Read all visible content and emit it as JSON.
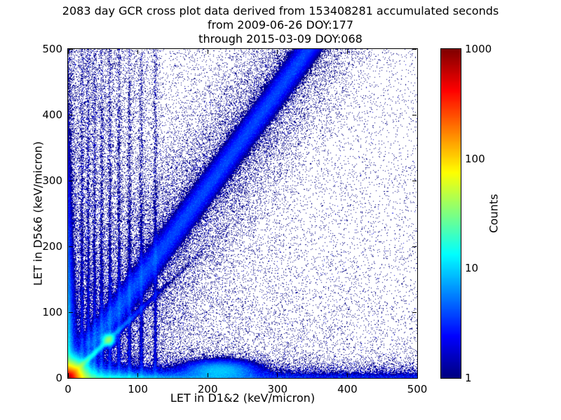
{
  "chart_data": {
    "type": "heatmap",
    "title": "2083 day GCR cross plot data derived from 153408281 accumulated seconds",
    "subtitle_from": "from 2009-06-26 DOY:177",
    "subtitle_through": "through 2015-03-09 DOY:068",
    "days": 2083,
    "accumulated_seconds": 153408281,
    "xlabel": "LET in D1&2 (keV/micron)",
    "ylabel": "LET in D5&6 (keV/micron)",
    "xlim": [
      0,
      500
    ],
    "ylim": [
      0,
      500
    ],
    "xticks": [
      0,
      100,
      200,
      300,
      400,
      500
    ],
    "yticks": [
      0,
      100,
      200,
      300,
      400,
      500
    ],
    "grid": false,
    "colormap": "jet",
    "background": "#ffffff",
    "colorbar": {
      "label": "Counts",
      "scale": "log",
      "min": 1,
      "max": 1000,
      "ticks": [
        1000,
        100,
        10,
        1
      ]
    },
    "density_model": {
      "seed": 20150309,
      "origin_peak": {
        "amp": 1000,
        "scale": 7
      },
      "bottom_band": {
        "amp": 28,
        "yscale": 7,
        "xscale": 80,
        "tail": 0.08
      },
      "left_band": {
        "amp": 18,
        "xscale": 5,
        "yscale": 150
      },
      "low_diagonal": {
        "amp": 25,
        "width": 2.5,
        "rscale": 60
      },
      "knot": {
        "x": 58,
        "y": 58,
        "amp": 28,
        "sigma": 5
      },
      "mid_blob": {
        "x": 218,
        "y": 12,
        "amp": 8,
        "sx": 30,
        "sy": 9
      },
      "main_band": {
        "slope": 1.45,
        "amp": 3.2,
        "width": 10,
        "spread_amp": 0.35,
        "spread_width": 45,
        "rmin": 60
      },
      "streaks": {
        "xs": [
          20,
          29,
          38,
          48,
          60,
          73,
          88,
          105,
          125
        ],
        "amp": 2.0,
        "width": 1.6,
        "yscale": 280
      },
      "scatter": {
        "n": 26000,
        "xscale": 200,
        "yscale": 200,
        "uniform_frac": 0.3
      },
      "band_scatter": {
        "n": 6000,
        "sigma": 55,
        "xmin": 30,
        "xmax": 340
      },
      "column_scatter": {
        "n": 6000,
        "jitter": 6
      },
      "left_cloud": {
        "n": 4000,
        "xscale": 90
      },
      "bottom_scatter": {
        "n": 5000,
        "yscale": 12
      },
      "speckle_fill_prob": 0.85
    }
  }
}
